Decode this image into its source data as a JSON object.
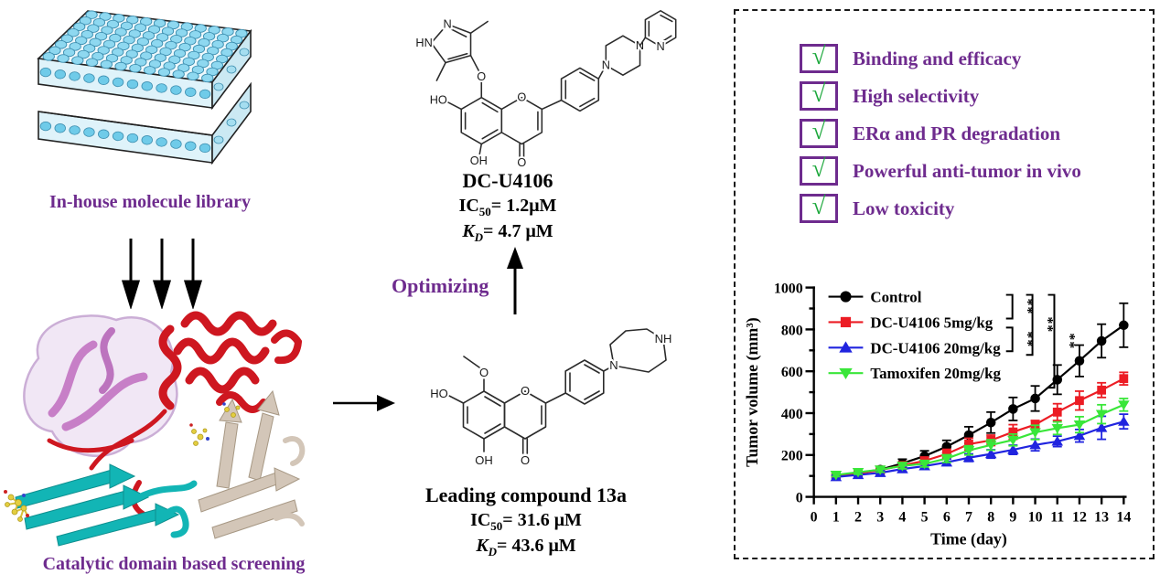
{
  "colors": {
    "purple": "#6E2B8E",
    "check_green": "#1DA83C",
    "control_black": "#000000",
    "dose5_red": "#EC1C24",
    "dose20_blue": "#2024DF",
    "tamoxifen_green": "#39E639"
  },
  "left_panel": {
    "library_label": "In-house molecule library",
    "screening_label": "Catalytic domain based screening"
  },
  "middle_panel": {
    "optimizing_label": "Optimizing",
    "compound_top": {
      "name": "DC-U4106",
      "ic50_prefix": "IC",
      "ic50_sub": "50",
      "ic50_value": "= 1.2μM",
      "kd_prefix": "K",
      "kd_sub": "D",
      "kd_value": "= 4.7 μM"
    },
    "compound_bottom": {
      "name": "Leading compound 13a",
      "ic50_prefix": "IC",
      "ic50_sub": "50",
      "ic50_value": "= 31.6 μM",
      "kd_prefix": "K",
      "kd_sub": "D",
      "kd_value": "= 43.6 μM"
    },
    "molecule_top_labels": {
      "hn": "HN",
      "n1": "N",
      "o_link": "O",
      "ho": "HO",
      "oh": "OH",
      "o_ring": "O",
      "o_keto": "O",
      "n_pip_a": "N",
      "n_pip_b": "N",
      "n_py": "N"
    },
    "molecule_bottom_labels": {
      "o_me": "O",
      "ho": "HO",
      "oh": "OH",
      "o_ring": "O",
      "o_keto": "O",
      "n_ring": "N",
      "nh_ring": "NH"
    }
  },
  "results_panel": {
    "check_glyph": "√",
    "checklist": [
      {
        "label": "Binding and efficacy"
      },
      {
        "label": "High selectivity"
      },
      {
        "label": "ERα and PR degradation"
      },
      {
        "label": "Powerful anti-tumor in vivo"
      },
      {
        "label": "Low toxicity"
      }
    ]
  },
  "chart_data": {
    "type": "line",
    "title": "",
    "xlabel": "Time (day)",
    "ylabel": "Tumor volume (mm³)",
    "x": [
      1,
      2,
      3,
      4,
      5,
      6,
      7,
      8,
      9,
      10,
      11,
      12,
      13,
      14
    ],
    "xticks": [
      0,
      1,
      2,
      3,
      4,
      5,
      6,
      7,
      8,
      9,
      10,
      11,
      12,
      13,
      14
    ],
    "yticks": [
      0,
      200,
      400,
      600,
      800,
      1000
    ],
    "yticks_minor": [
      100,
      300,
      500,
      700,
      900
    ],
    "ylim": [
      0,
      1000
    ],
    "grid": false,
    "legend_position": "top-left",
    "series": [
      {
        "name": "Control",
        "color": "#000000",
        "marker": "circle",
        "values": [
          100,
          115,
          130,
          160,
          195,
          240,
          295,
          355,
          420,
          470,
          560,
          650,
          745,
          820
        ],
        "errors": [
          10,
          12,
          15,
          20,
          25,
          30,
          40,
          50,
          55,
          60,
          70,
          75,
          80,
          105
        ]
      },
      {
        "name": "DC-U4106 5mg/kg",
        "color": "#EC1C24",
        "marker": "square",
        "values": [
          100,
          112,
          128,
          150,
          172,
          205,
          252,
          270,
          310,
          345,
          405,
          460,
          510,
          565
        ],
        "errors": [
          8,
          10,
          12,
          15,
          18,
          22,
          28,
          25,
          35,
          20,
          40,
          45,
          35,
          30
        ]
      },
      {
        "name": "DC-U4106 20mg/kg",
        "color": "#2024DF",
        "marker": "triangle-up",
        "values": [
          95,
          105,
          115,
          133,
          147,
          165,
          187,
          205,
          225,
          248,
          265,
          292,
          330,
          360
        ],
        "errors": [
          8,
          9,
          10,
          12,
          14,
          15,
          18,
          20,
          22,
          28,
          25,
          30,
          55,
          35
        ]
      },
      {
        "name": "Tamoxifen 20mg/kg",
        "color": "#39E639",
        "marker": "triangle-down",
        "values": [
          105,
          118,
          130,
          148,
          158,
          183,
          222,
          248,
          272,
          308,
          328,
          345,
          395,
          440
        ],
        "errors": [
          8,
          10,
          12,
          14,
          15,
          18,
          22,
          25,
          28,
          34,
          30,
          38,
          45,
          30
        ]
      }
    ],
    "significance": [
      "**",
      "**",
      "**",
      "**"
    ]
  }
}
